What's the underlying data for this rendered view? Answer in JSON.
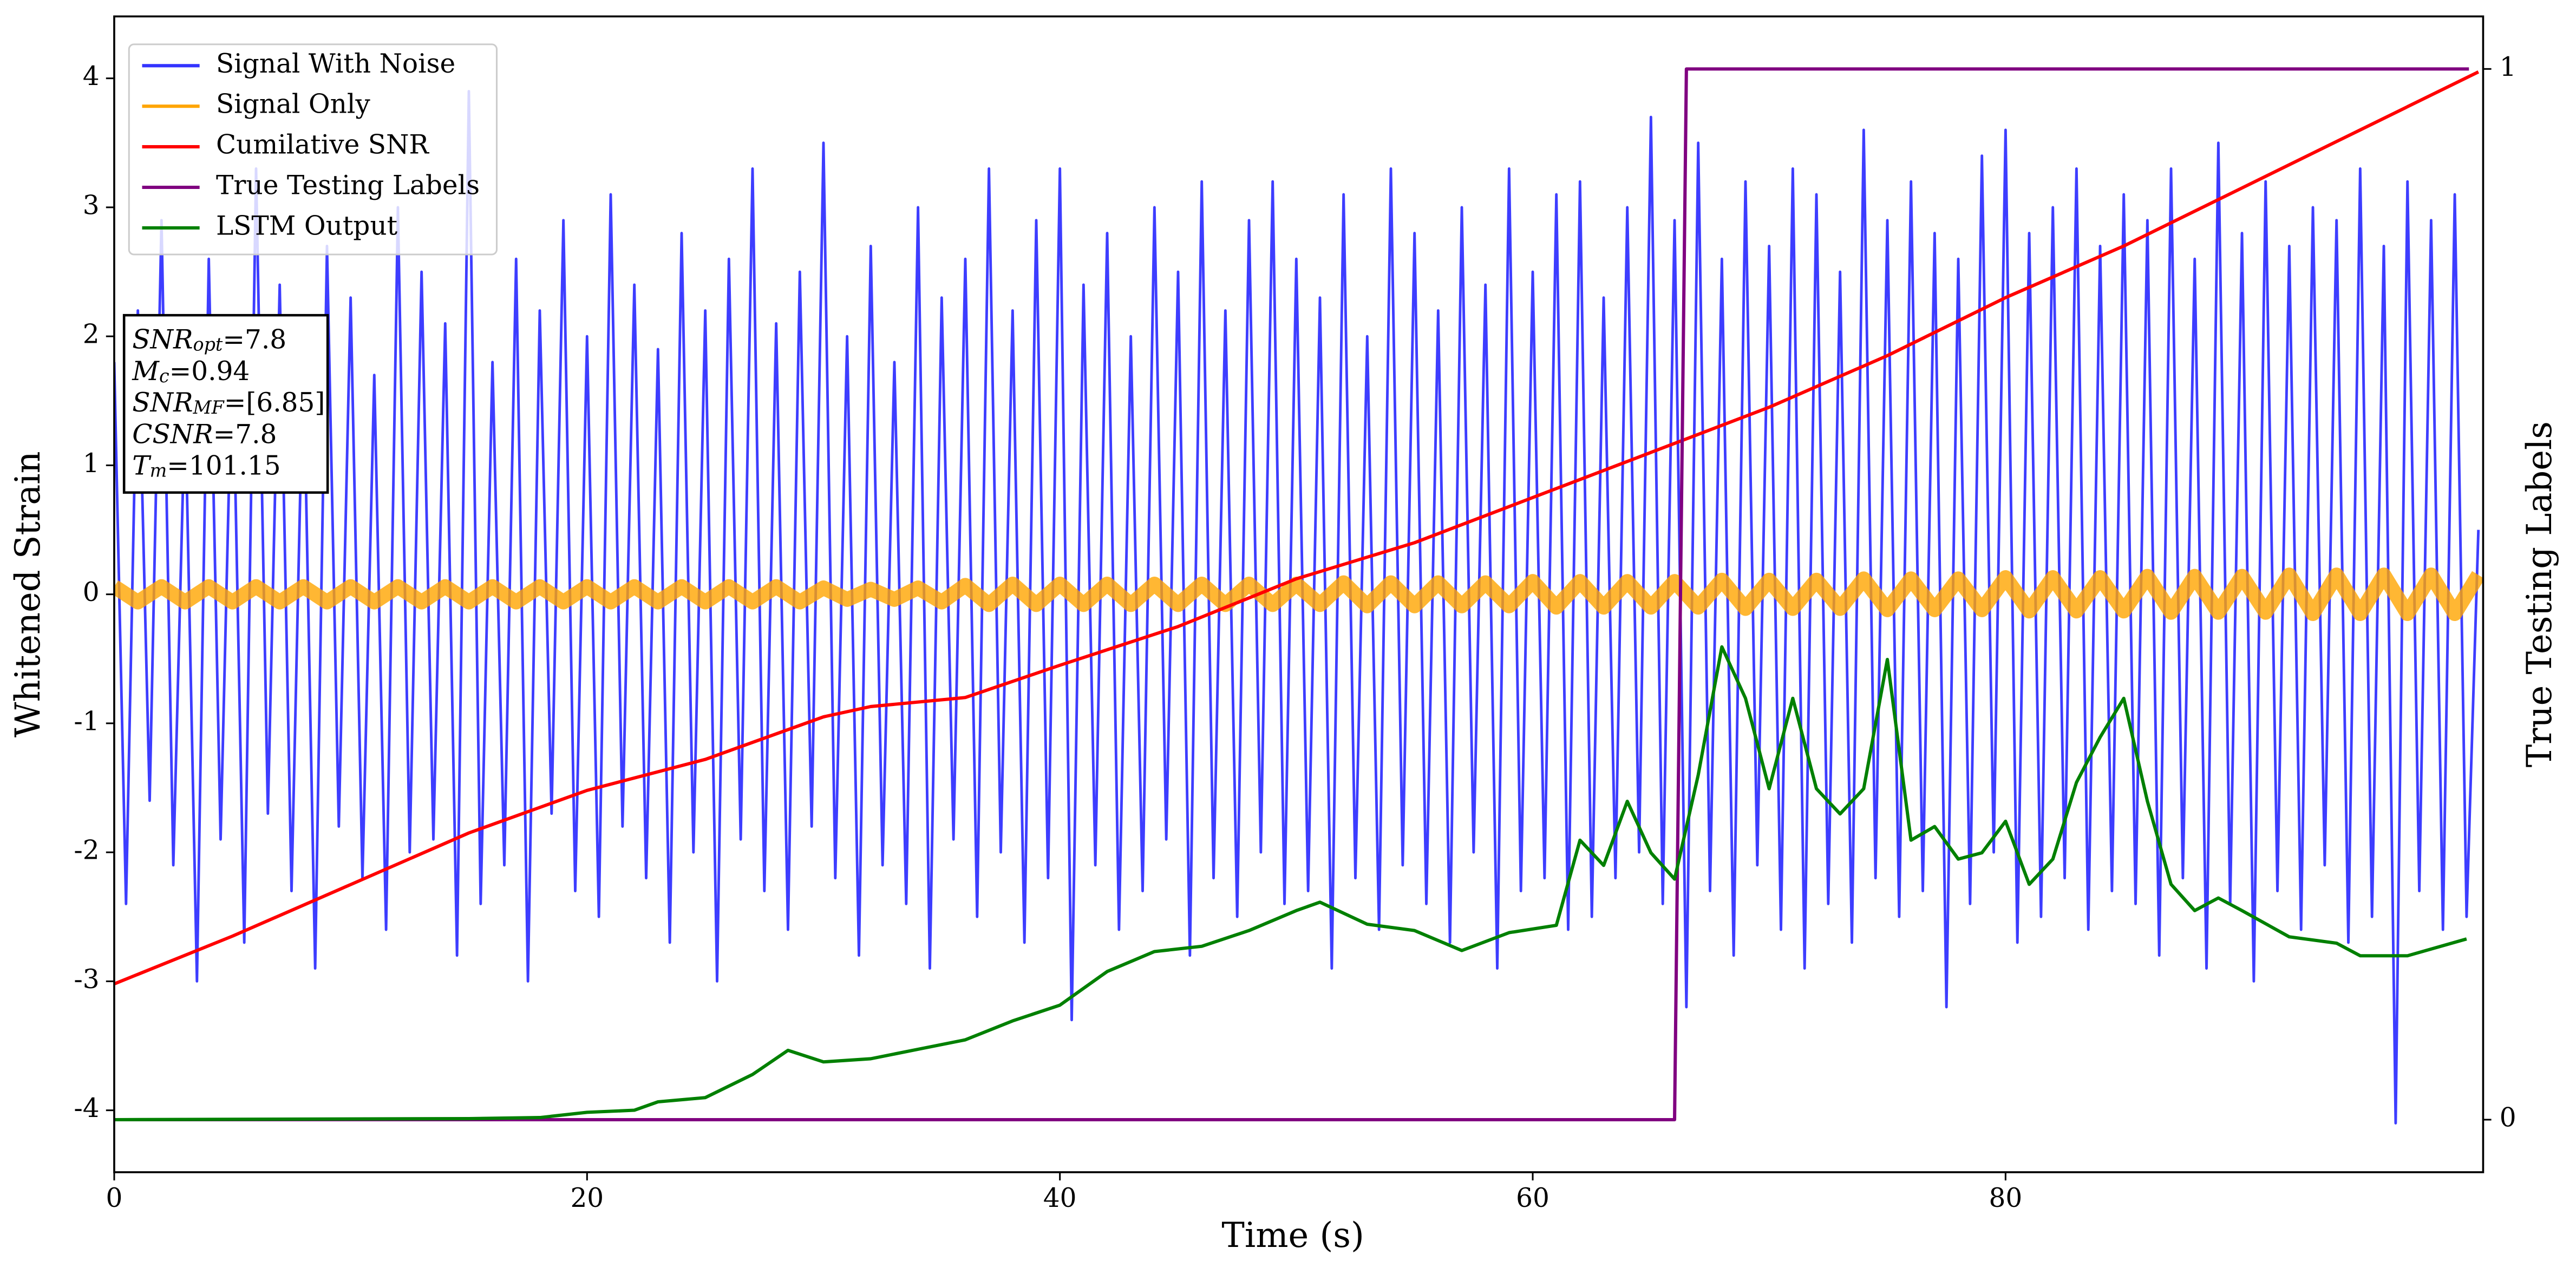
{
  "chart_data": {
    "type": "line",
    "xlabel": "Time (s)",
    "ylabel": "Whitened Strain",
    "y2label": "True Testing Labels",
    "xlim": [
      0,
      100.2
    ],
    "ylim": [
      -4.48,
      4.48
    ],
    "y2lim": [
      -0.05,
      1.05
    ],
    "xticks": [
      0,
      20,
      40,
      60,
      80
    ],
    "yticks": [
      -4,
      -3,
      -2,
      -1,
      0,
      1,
      2,
      3,
      4
    ],
    "y2ticks": [
      0,
      1
    ],
    "legend": "upper left",
    "series": [
      {
        "name": "Signal With Noise",
        "color": "#3333ff",
        "x_step": 0.5,
        "values": [
          1.8,
          -2.4,
          2.2,
          -1.6,
          2.9,
          -2.1,
          1.5,
          -3.0,
          2.6,
          -1.9,
          2.0,
          -2.7,
          3.3,
          -1.7,
          2.4,
          -2.3,
          1.9,
          -2.9,
          2.7,
          -1.8,
          2.3,
          -2.2,
          1.7,
          -2.6,
          3.0,
          -2.0,
          2.5,
          -1.9,
          2.1,
          -2.8,
          3.9,
          -2.4,
          1.8,
          -2.1,
          2.6,
          -3.0,
          2.2,
          -1.7,
          2.9,
          -2.3,
          2.0,
          -2.5,
          3.1,
          -1.8,
          2.4,
          -2.2,
          1.9,
          -2.7,
          2.8,
          -2.0,
          2.2,
          -3.0,
          2.6,
          -1.9,
          3.3,
          -2.3,
          2.1,
          -2.6,
          2.5,
          -1.8,
          3.5,
          -2.2,
          2.0,
          -2.8,
          2.7,
          -2.1,
          1.8,
          -2.4,
          3.0,
          -2.9,
          2.3,
          -1.9,
          2.6,
          -2.5,
          3.3,
          -2.0,
          2.2,
          -2.7,
          2.9,
          -2.2,
          3.3,
          -3.3,
          2.4,
          -2.1,
          2.8,
          -2.6,
          2.0,
          -2.3,
          3.0,
          -1.9,
          2.5,
          -2.8,
          3.2,
          -2.2,
          2.2,
          -2.5,
          2.9,
          -2.0,
          3.2,
          -2.4,
          2.6,
          -2.3,
          2.3,
          -2.9,
          3.1,
          -2.2,
          2.0,
          -2.6,
          3.3,
          -2.1,
          2.8,
          -2.4,
          2.2,
          -2.7,
          3.0,
          -2.0,
          2.4,
          -2.9,
          3.3,
          -2.3,
          2.5,
          -2.2,
          3.1,
          -2.6,
          3.2,
          -2.5,
          2.3,
          -2.2,
          3.0,
          -2.0,
          3.7,
          -2.4,
          2.9,
          -3.2,
          3.5,
          -2.3,
          2.6,
          -2.8,
          3.2,
          -2.1,
          2.7,
          -2.6,
          3.3,
          -2.9,
          3.1,
          -2.4,
          2.5,
          -2.7,
          3.6,
          -2.2,
          2.9,
          -2.5,
          3.2,
          -2.3,
          2.8,
          -3.2,
          2.6,
          -2.4,
          3.4,
          -2.0,
          3.6,
          -2.7,
          2.8,
          -2.5,
          3.0,
          -2.2,
          3.3,
          -2.6,
          2.7,
          -2.3,
          3.1,
          -2.4,
          2.9,
          -2.8,
          3.3,
          -2.2,
          2.6,
          -2.9,
          3.5,
          -2.4,
          2.8,
          -3.0,
          3.2,
          -2.3,
          2.7,
          -2.6,
          3.0,
          -2.1,
          2.9,
          -2.7,
          3.3,
          -2.5,
          2.7,
          -4.1,
          3.2,
          -2.3,
          2.9,
          -2.6,
          3.1,
          -2.5,
          0.5
        ]
      },
      {
        "name": "Signal Only",
        "color": "#ffa500",
        "x_step": 1,
        "values": [
          0.06,
          -0.06,
          0.06,
          -0.06,
          0.06,
          -0.06,
          0.06,
          -0.06,
          0.06,
          -0.06,
          0.06,
          -0.06,
          0.06,
          -0.06,
          0.06,
          -0.06,
          0.06,
          -0.06,
          0.06,
          -0.06,
          0.06,
          -0.06,
          0.06,
          -0.06,
          0.06,
          -0.06,
          0.06,
          -0.06,
          0.06,
          -0.06,
          0.05,
          -0.04,
          0.04,
          -0.04,
          0.05,
          -0.06,
          0.07,
          -0.08,
          0.08,
          -0.08,
          0.08,
          -0.08,
          0.08,
          -0.08,
          0.08,
          -0.08,
          0.08,
          -0.08,
          0.08,
          -0.08,
          0.08,
          -0.08,
          0.09,
          -0.09,
          0.09,
          -0.09,
          0.09,
          -0.09,
          0.09,
          -0.09,
          0.1,
          -0.1,
          0.1,
          -0.1,
          0.1,
          -0.1,
          0.1,
          -0.1,
          0.11,
          -0.11,
          0.11,
          -0.11,
          0.11,
          -0.11,
          0.12,
          -0.12,
          0.12,
          -0.12,
          0.12,
          -0.12,
          0.13,
          -0.13,
          0.13,
          -0.13,
          0.13,
          -0.13,
          0.14,
          -0.14,
          0.14,
          -0.14,
          0.14,
          -0.14,
          0.15,
          -0.15,
          0.15,
          -0.15,
          0.15,
          -0.15,
          0.15,
          -0.15,
          0.15
        ]
      },
      {
        "name": "Cumilative SNR",
        "color": "#ff0000",
        "x": [
          0,
          5,
          10,
          15,
          20,
          25,
          30,
          32,
          36,
          40,
          45,
          50,
          55,
          60,
          65,
          70,
          75,
          80,
          85,
          90,
          95,
          100
        ],
        "values": [
          -3.02,
          -2.65,
          -2.25,
          -1.85,
          -1.52,
          -1.28,
          -0.95,
          -0.87,
          -0.8,
          -0.55,
          -0.25,
          0.12,
          0.4,
          0.75,
          1.1,
          1.45,
          1.85,
          2.3,
          2.7,
          3.15,
          3.6,
          4.05
        ]
      },
      {
        "name": "True Testing Labels",
        "color": "#800080",
        "axis": "y2",
        "x": [
          0,
          66,
          66.5,
          99.6
        ],
        "values": [
          0,
          0,
          1,
          1
        ]
      },
      {
        "name": "LSTM Output",
        "color": "#008000",
        "axis": "y2",
        "x": [
          0,
          15,
          18,
          20,
          22,
          23,
          25,
          27,
          28.5,
          30,
          32,
          34,
          36,
          38,
          40,
          42,
          44,
          46,
          48,
          50,
          51,
          53,
          55,
          57,
          59,
          61,
          62,
          63,
          64,
          65,
          66,
          67,
          68,
          69,
          70,
          71,
          72,
          73,
          74,
          75,
          76,
          77,
          78,
          79,
          80,
          81,
          82,
          83,
          84,
          85,
          86,
          87,
          88,
          89,
          90,
          92,
          94,
          95,
          97,
          99.5
        ],
        "values": [
          0,
          0.001,
          0.002,
          0.007,
          0.009,
          0.017,
          0.021,
          0.043,
          0.066,
          0.055,
          0.058,
          0.067,
          0.076,
          0.094,
          0.109,
          0.141,
          0.16,
          0.165,
          0.18,
          0.199,
          0.207,
          0.186,
          0.18,
          0.161,
          0.178,
          0.185,
          0.266,
          0.242,
          0.303,
          0.254,
          0.229,
          0.328,
          0.45,
          0.401,
          0.315,
          0.401,
          0.315,
          0.291,
          0.315,
          0.438,
          0.266,
          0.279,
          0.248,
          0.254,
          0.284,
          0.224,
          0.248,
          0.321,
          0.364,
          0.401,
          0.303,
          0.224,
          0.199,
          0.211,
          0.199,
          0.174,
          0.168,
          0.156,
          0.156,
          0.172
        ]
      }
    ],
    "annotation": [
      {
        "base": "SNR",
        "sub": "opt",
        "text": "=7.8"
      },
      {
        "base": "M",
        "sub": "c",
        "text": "=0.94"
      },
      {
        "base": "SNR",
        "sub": "MF",
        "text": "=[6.85]"
      },
      {
        "base": "CSNR",
        "text": "=7.8"
      },
      {
        "base": "T",
        "sub": "m",
        "text": "=101.15"
      }
    ]
  }
}
